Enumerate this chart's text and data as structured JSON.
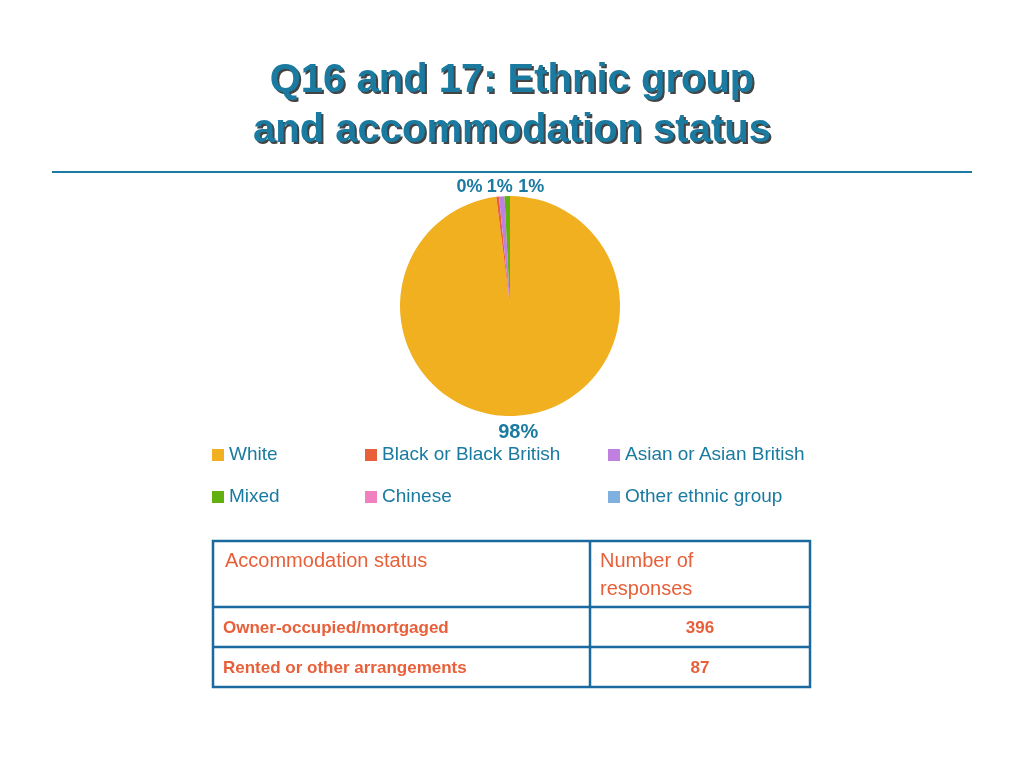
{
  "chart_data": [
    {
      "type": "pie",
      "title": "Q16 and 17: Ethnic group\nand accommodation status",
      "categories": [
        "White",
        "Black or Black British",
        "Asian or Asian British",
        "Mixed",
        "Chinese",
        "Other ethnic group"
      ],
      "values": [
        98,
        0.4,
        0.8,
        0.8,
        0,
        0
      ],
      "colors": [
        "#f0b020",
        "#e8603a",
        "#c080e0",
        "#60b010",
        "#f080c0",
        "#80b0e0"
      ],
      "value_labels": [
        "98%",
        "0%",
        "1%",
        "1%",
        null,
        null
      ],
      "legend": "bottom"
    },
    {
      "type": "other",
      "xlabel": "Accommodation status",
      "ylabel": "Number of responses",
      "categories": [
        "Owner-occupied/mortgaged",
        "Rented or other arrangements"
      ],
      "values": [
        396,
        87
      ],
      "data_labels": true
    }
  ]
}
